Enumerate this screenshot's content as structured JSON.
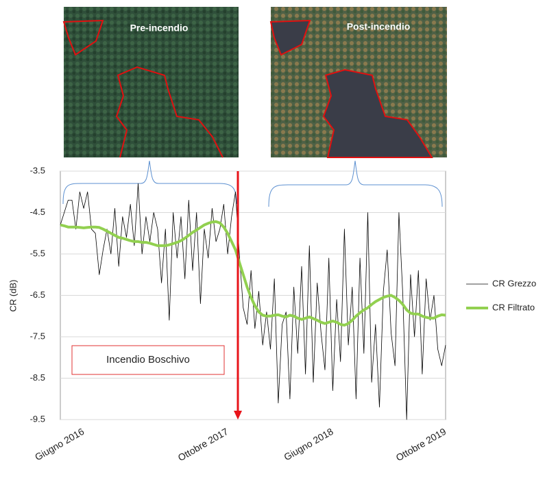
{
  "chart_data": {
    "type": "line",
    "annotations": [
      "Pre-incendio",
      "Post-incendio",
      "Incendio Boschivo"
    ],
    "y_label": "CR (dB)",
    "categories": [
      null,
      null,
      null,
      null,
      null,
      null,
      "Giugno 2016",
      null,
      null,
      null,
      null,
      null,
      null,
      null,
      null,
      null,
      null,
      null,
      null,
      null,
      null,
      null,
      null,
      null,
      null,
      null,
      null,
      null,
      null,
      null,
      null,
      null,
      null,
      null,
      null,
      null,
      null,
      null,
      null,
      null,
      null,
      null,
      null,
      "Ottobre 2017",
      null,
      null,
      null,
      null,
      null,
      null,
      null,
      null,
      null,
      null,
      null,
      null,
      null,
      null,
      null,
      null,
      null,
      null,
      null,
      null,
      null,
      null,
      null,
      null,
      null,
      null,
      "Giugno 2018",
      null,
      null,
      null,
      null,
      null,
      null,
      null,
      null,
      null,
      null,
      null,
      null,
      null,
      null,
      null,
      null,
      null,
      null,
      null,
      null,
      null,
      null,
      null,
      null,
      null,
      null,
      null,
      null,
      "Ottobre 2019"
    ],
    "series": [
      {
        "name": "CR Grezzo",
        "color": "#000000",
        "width": 0.8,
        "values": [
          -4.8,
          -4.5,
          -4.2,
          -4.2,
          -4.9,
          -4.0,
          -4.4,
          -4.0,
          -4.9,
          -5.0,
          -6.0,
          -5.4,
          -4.9,
          -5.5,
          -4.4,
          -5.8,
          -4.6,
          -5.1,
          -4.3,
          -5.3,
          -3.8,
          -5.5,
          -4.6,
          -5.2,
          -4.5,
          -4.9,
          -6.2,
          -4.9,
          -7.1,
          -4.5,
          -5.6,
          -4.6,
          -6.1,
          -4.2,
          -5.9,
          -4.5,
          -6.7,
          -4.9,
          -5.6,
          -4.4,
          -5.2,
          -4.9,
          -4.3,
          -5.5,
          -4.6,
          -4.0,
          -5.5,
          -6.8,
          -7.2,
          -5.9,
          -7.3,
          -6.4,
          -7.7,
          -6.9,
          -7.8,
          -6.1,
          -9.1,
          -7.2,
          -6.9,
          -9.0,
          -6.3,
          -7.9,
          -5.8,
          -8.4,
          -5.3,
          -8.6,
          -6.2,
          -7.4,
          -8.3,
          -5.6,
          -8.8,
          -6.6,
          -8.1,
          -4.9,
          -7.7,
          -6.3,
          -9.0,
          -5.6,
          -7.9,
          -4.5,
          -8.6,
          -7.2,
          -9.2,
          -6.4,
          -5.4,
          -7.4,
          -8.2,
          -4.5,
          -6.5,
          -9.5,
          -6.0,
          -7.5,
          -5.9,
          -8.4,
          -6.1,
          -7.1,
          -6.5,
          -7.8,
          -8.2,
          -7.7
        ]
      },
      {
        "name": "CR Filtrato",
        "color": "#92d050",
        "width": 4,
        "values": [
          -4.8,
          -4.82,
          -4.85,
          -4.85,
          -4.85,
          -4.86,
          -4.87,
          -4.86,
          -4.85,
          -4.85,
          -4.86,
          -4.9,
          -4.95,
          -5.0,
          -5.05,
          -5.1,
          -5.12,
          -5.15,
          -5.18,
          -5.2,
          -5.2,
          -5.22,
          -5.22,
          -5.24,
          -5.27,
          -5.3,
          -5.3,
          -5.3,
          -5.28,
          -5.25,
          -5.22,
          -5.18,
          -5.12,
          -5.05,
          -4.98,
          -4.92,
          -4.86,
          -4.8,
          -4.76,
          -4.73,
          -4.72,
          -4.75,
          -4.85,
          -5.0,
          -5.2,
          -5.4,
          -5.7,
          -6.0,
          -6.3,
          -6.55,
          -6.75,
          -6.9,
          -6.98,
          -7.0,
          -7.0,
          -6.98,
          -6.97,
          -7.0,
          -7.02,
          -6.98,
          -7.0,
          -7.05,
          -7.08,
          -7.05,
          -7.02,
          -7.06,
          -7.1,
          -7.15,
          -7.18,
          -7.15,
          -7.12,
          -7.15,
          -7.2,
          -7.22,
          -7.18,
          -7.1,
          -7.0,
          -6.92,
          -6.85,
          -6.8,
          -6.72,
          -6.65,
          -6.6,
          -6.55,
          -6.52,
          -6.5,
          -6.55,
          -6.62,
          -6.72,
          -6.85,
          -6.93,
          -6.95,
          -6.95,
          -7.0,
          -7.03,
          -7.05,
          -7.05,
          -7.0,
          -6.97,
          -6.98
        ]
      }
    ],
    "ylim": [
      -9.5,
      -3.5
    ],
    "yticks": [
      -3.5,
      -4.5,
      -5.5,
      -6.5,
      -7.5,
      -8.5,
      -9.5
    ],
    "grid": true
  }
}
